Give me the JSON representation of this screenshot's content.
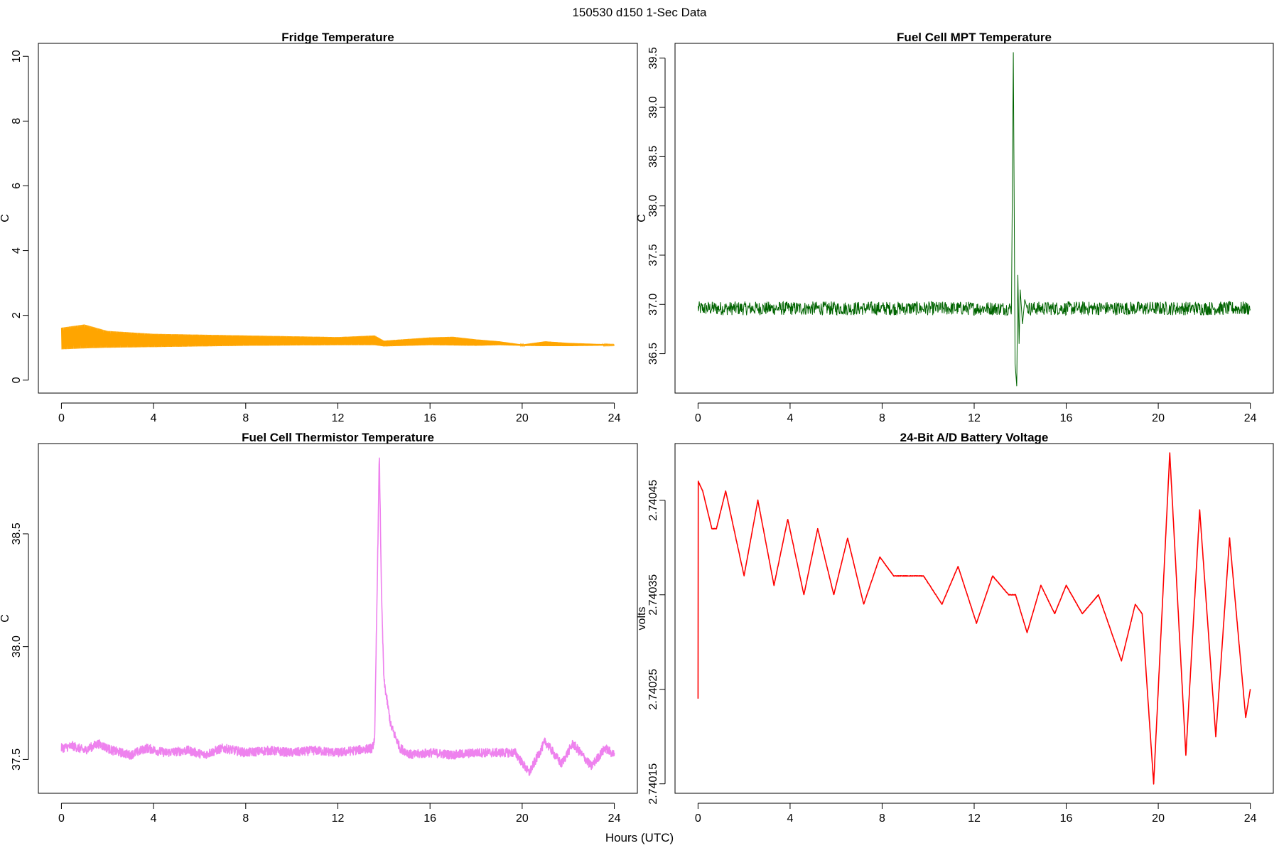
{
  "figure": {
    "title": "150530   d150   1-Sec Data",
    "xlabel": "Hours (UTC)"
  },
  "chart_data": [
    {
      "type": "line",
      "title": "Fridge Temperature",
      "xlabel": "Hours (UTC)",
      "ylabel": "C",
      "color": "#FFA500",
      "xlim": [
        -1,
        25
      ],
      "ylim": [
        -0.4,
        10.4
      ],
      "xticks": [
        "0",
        "4",
        "8",
        "12",
        "16",
        "20",
        "24"
      ],
      "yticks": [
        "0",
        "2",
        "4",
        "6",
        "8",
        "10"
      ],
      "series": [
        {
          "name": "Fridge Temperature",
          "envelope": [
            [
              0,
              1.62
            ],
            [
              1,
              1.72
            ],
            [
              2,
              1.52
            ],
            [
              4,
              1.43
            ],
            [
              8,
              1.38
            ],
            [
              12,
              1.33
            ],
            [
              13.6,
              1.38
            ],
            [
              14,
              1.22
            ],
            [
              16,
              1.32
            ],
            [
              17,
              1.34
            ],
            [
              18,
              1.26
            ],
            [
              19,
              1.2
            ],
            [
              20,
              1.1
            ],
            [
              21,
              1.2
            ],
            [
              22,
              1.15
            ],
            [
              24,
              1.1
            ]
          ],
          "lower": [
            [
              0,
              0.95
            ],
            [
              1,
              0.98
            ],
            [
              2,
              1.0
            ],
            [
              4,
              1.02
            ],
            [
              8,
              1.06
            ],
            [
              12,
              1.08
            ],
            [
              13.6,
              1.08
            ],
            [
              14,
              1.04
            ],
            [
              16,
              1.08
            ],
            [
              18,
              1.06
            ],
            [
              19,
              1.08
            ],
            [
              20,
              1.06
            ],
            [
              21,
              1.05
            ],
            [
              22,
              1.05
            ],
            [
              24,
              1.07
            ]
          ]
        }
      ]
    },
    {
      "type": "line",
      "title": "Fuel Cell MPT Temperature",
      "xlabel": "Hours (UTC)",
      "ylabel": "C",
      "color": "#006400",
      "xlim": [
        -1,
        25
      ],
      "ylim": [
        36.1,
        39.65
      ],
      "xticks": [
        "0",
        "4",
        "8",
        "12",
        "16",
        "20",
        "24"
      ],
      "yticks": [
        "36.5",
        "37.0",
        "37.5",
        "38.0",
        "38.5",
        "39.0",
        "39.5"
      ],
      "series": [
        {
          "name": "Fuel Cell MPT Temperature",
          "baseline": 36.96,
          "noise": 0.07,
          "spike": [
            [
              13.62,
              36.96
            ],
            [
              13.7,
              39.56
            ],
            [
              13.78,
              36.4
            ],
            [
              13.85,
              36.17
            ],
            [
              13.9,
              37.3
            ],
            [
              13.95,
              36.6
            ],
            [
              14.0,
              37.15
            ],
            [
              14.1,
              36.8
            ],
            [
              14.2,
              37.05
            ],
            [
              14.3,
              36.96
            ]
          ]
        }
      ]
    },
    {
      "type": "line",
      "title": "Fuel Cell Thermistor Temperature",
      "xlabel": "Hours (UTC)",
      "ylabel": "C",
      "color": "#EE82EE",
      "xlim": [
        -1,
        25
      ],
      "ylim": [
        37.35,
        38.9
      ],
      "xticks": [
        "0",
        "4",
        "8",
        "12",
        "16",
        "20",
        "24"
      ],
      "yticks": [
        "37.5",
        "38.0",
        "38.5"
      ],
      "series": [
        {
          "name": "Fuel Cell Thermistor Temperature",
          "points": [
            [
              0,
              37.55
            ],
            [
              0.5,
              37.56
            ],
            [
              1,
              37.54
            ],
            [
              1.6,
              37.57
            ],
            [
              2.2,
              37.54
            ],
            [
              3,
              37.52
            ],
            [
              3.7,
              37.55
            ],
            [
              4.5,
              37.53
            ],
            [
              5.5,
              37.54
            ],
            [
              6.2,
              37.52
            ],
            [
              7,
              37.55
            ],
            [
              8,
              37.53
            ],
            [
              9,
              37.54
            ],
            [
              10,
              37.53
            ],
            [
              11,
              37.54
            ],
            [
              12,
              37.53
            ],
            [
              13.5,
              37.55
            ],
            [
              13.6,
              37.6
            ],
            [
              13.8,
              38.85
            ],
            [
              13.9,
              38.2
            ],
            [
              14.0,
              37.85
            ],
            [
              14.3,
              37.65
            ],
            [
              14.7,
              37.55
            ],
            [
              15.2,
              37.52
            ],
            [
              16,
              37.53
            ],
            [
              17,
              37.52
            ],
            [
              18,
              37.53
            ],
            [
              19,
              37.53
            ],
            [
              19.7,
              37.53
            ],
            [
              20.3,
              37.44
            ],
            [
              21,
              37.58
            ],
            [
              21.7,
              37.48
            ],
            [
              22.2,
              37.57
            ],
            [
              23,
              37.47
            ],
            [
              23.6,
              37.55
            ],
            [
              24,
              37.52
            ]
          ],
          "noise": 0.02
        }
      ]
    },
    {
      "type": "line",
      "title": "24-Bit A/D Battery Voltage",
      "xlabel": "Hours (UTC)",
      "ylabel": "volts",
      "color": "#FF0000",
      "xlim": [
        -1,
        25
      ],
      "ylim": [
        2.74014,
        2.74051
      ],
      "xticks": [
        "0",
        "4",
        "8",
        "12",
        "16",
        "20",
        "24"
      ],
      "yticks": [
        "2.74015",
        "2.74025",
        "2.74035",
        "2.74045"
      ],
      "series": [
        {
          "name": "24-Bit A/D Battery Voltage",
          "points": [
            [
              0,
              2.74024
            ],
            [
              0.01,
              2.74047
            ],
            [
              0.2,
              2.74046
            ],
            [
              0.6,
              2.74042
            ],
            [
              0.8,
              2.74042
            ],
            [
              1.2,
              2.74046
            ],
            [
              2,
              2.74037
            ],
            [
              2.6,
              2.74045
            ],
            [
              3.3,
              2.74036
            ],
            [
              3.9,
              2.74043
            ],
            [
              4.6,
              2.74035
            ],
            [
              5.2,
              2.74042
            ],
            [
              5.9,
              2.74035
            ],
            [
              6.5,
              2.74041
            ],
            [
              7.2,
              2.74034
            ],
            [
              7.9,
              2.74039
            ],
            [
              8.5,
              2.74037
            ],
            [
              9,
              2.74037
            ],
            [
              9.8,
              2.74037
            ],
            [
              10.6,
              2.74034
            ],
            [
              11.3,
              2.74038
            ],
            [
              12.1,
              2.74032
            ],
            [
              12.8,
              2.74037
            ],
            [
              13.5,
              2.74035
            ],
            [
              13.8,
              2.74035
            ],
            [
              14.3,
              2.74031
            ],
            [
              14.9,
              2.74036
            ],
            [
              15.5,
              2.74033
            ],
            [
              16,
              2.74036
            ],
            [
              16.7,
              2.74033
            ],
            [
              17.4,
              2.74035
            ],
            [
              18.4,
              2.74028
            ],
            [
              19,
              2.74034
            ],
            [
              19.3,
              2.74033
            ],
            [
              19.8,
              2.74015
            ],
            [
              20.5,
              2.7405
            ],
            [
              21.2,
              2.74018
            ],
            [
              21.8,
              2.74044
            ],
            [
              22.5,
              2.7402
            ],
            [
              23.1,
              2.74041
            ],
            [
              23.8,
              2.74022
            ],
            [
              24,
              2.74025
            ]
          ],
          "noise": 3e-07
        }
      ]
    }
  ]
}
